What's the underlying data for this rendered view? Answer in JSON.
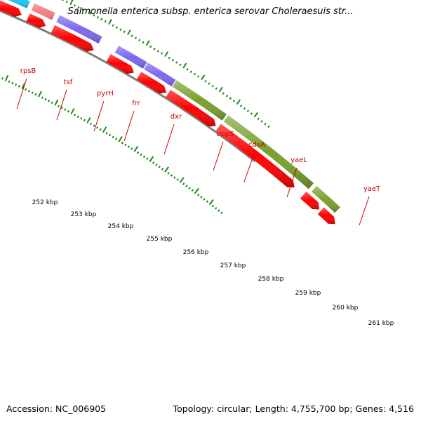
{
  "title": "Salmonella enterica subsp. enterica serovar Choleraesuis str...",
  "accession_line": "Accession: NC_006905",
  "summary_line": "Topology: circular; Length: 4,755,700 bp; Genes: 4,516",
  "colors": {
    "cds_reverse": "#ff0000",
    "gene_salmon": "#f08080",
    "gene_cyan": "#1ec8f0",
    "gene_purple": "#7b68ee",
    "gene_green": "#7aa02c",
    "backbone": "#808080",
    "tick": "#1a8a1a",
    "label": "#cc0000"
  },
  "scale_labels": [
    "252 kbp",
    "253 kbp",
    "254 kbp",
    "255 kbp",
    "256 kbp",
    "257 kbp",
    "258 kbp",
    "259 kbp",
    "260 kbp",
    "261 kbp"
  ],
  "gene_labels": [
    "rpsB",
    "tsf",
    "pyrH",
    "frr",
    "dxr",
    "uppS",
    "cdsA",
    "yaeL",
    "yaeT"
  ],
  "forward_genes": [
    {
      "name": "rpsB",
      "color": "gene_salmon"
    },
    {
      "name": "tsf",
      "color": "gene_salmon"
    },
    {
      "name": "pyrH",
      "color": "gene_cyan"
    },
    {
      "name": "frr",
      "color": "gene_salmon"
    },
    {
      "name": "dxr",
      "color": "gene_purple"
    },
    {
      "name": "uppS",
      "color": "gene_purple"
    },
    {
      "name": "cdsA",
      "color": "gene_purple"
    },
    {
      "name": "yaeL",
      "color": "gene_green"
    },
    {
      "name": "yaeT",
      "color": "gene_green"
    },
    {
      "name": "",
      "color": "gene_green"
    }
  ]
}
